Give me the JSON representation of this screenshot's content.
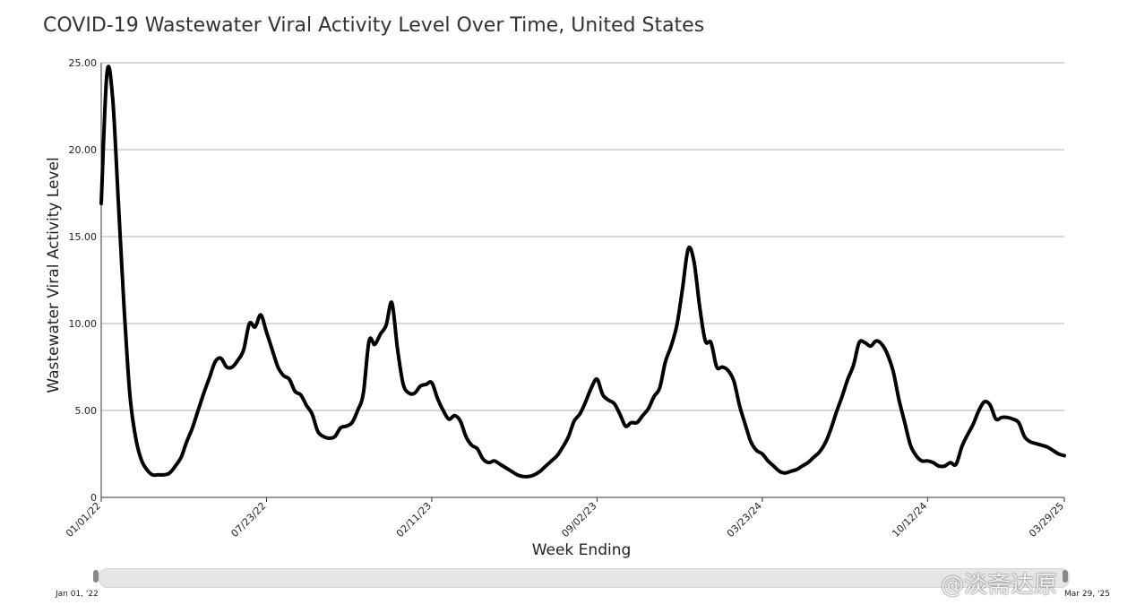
{
  "title": "COVID-19 Wastewater Viral Activity Level Over Time, United States",
  "watermark": "@淡斋达原",
  "range_slider": {
    "start_label": "Jan 01, '22",
    "end_label": "Mar 29, '25"
  },
  "colors": {
    "line": "#000000",
    "grid": "#999999",
    "slider": "#e6e6e6"
  },
  "chart_data": {
    "type": "line",
    "title": "COVID-19 Wastewater Viral Activity Level Over Time, United States",
    "xlabel": "Week Ending",
    "ylabel": "Wastewater Viral Activity Level",
    "ylim": [
      0,
      25
    ],
    "yticks": [
      0,
      5,
      10,
      15,
      20,
      25
    ],
    "ytick_labels": [
      "0",
      "5.00",
      "10.00",
      "15.00",
      "20.00",
      "25.00"
    ],
    "xlim": [
      "01/01/22",
      "03/29/25"
    ],
    "xtick_labels": [
      "01/01/22",
      "07/23/22",
      "02/11/23",
      "09/02/23",
      "03/23/24",
      "10/12/24",
      "03/29/25"
    ],
    "grid": "horizontal",
    "legend": "none",
    "series": [
      {
        "points": [
          [
            "01/01/22",
            16.9
          ],
          [
            "01/08/22",
            24.4
          ],
          [
            "01/15/22",
            23.0
          ],
          [
            "01/22/22",
            17.0
          ],
          [
            "01/29/22",
            11.0
          ],
          [
            "02/05/22",
            6.0
          ],
          [
            "02/12/22",
            3.5
          ],
          [
            "02/19/22",
            2.2
          ],
          [
            "02/26/22",
            1.6
          ],
          [
            "03/05/22",
            1.3
          ],
          [
            "03/12/22",
            1.3
          ],
          [
            "03/19/22",
            1.3
          ],
          [
            "03/26/22",
            1.4
          ],
          [
            "04/02/22",
            1.8
          ],
          [
            "04/09/22",
            2.3
          ],
          [
            "04/16/22",
            3.2
          ],
          [
            "04/23/22",
            4.0
          ],
          [
            "04/30/22",
            5.0
          ],
          [
            "05/07/22",
            6.0
          ],
          [
            "05/14/22",
            6.9
          ],
          [
            "05/21/22",
            7.8
          ],
          [
            "05/28/22",
            8.0
          ],
          [
            "06/04/22",
            7.5
          ],
          [
            "06/11/22",
            7.5
          ],
          [
            "06/18/22",
            7.9
          ],
          [
            "06/25/22",
            8.5
          ],
          [
            "07/02/22",
            10.0
          ],
          [
            "07/09/22",
            9.8
          ],
          [
            "07/16/22",
            10.5
          ],
          [
            "07/23/22",
            9.5
          ],
          [
            "07/30/22",
            8.5
          ],
          [
            "08/06/22",
            7.5
          ],
          [
            "08/13/22",
            7.0
          ],
          [
            "08/20/22",
            6.8
          ],
          [
            "08/27/22",
            6.1
          ],
          [
            "09/03/22",
            5.9
          ],
          [
            "09/10/22",
            5.3
          ],
          [
            "09/17/22",
            4.8
          ],
          [
            "09/24/22",
            3.8
          ],
          [
            "10/01/22",
            3.5
          ],
          [
            "10/08/22",
            3.4
          ],
          [
            "10/15/22",
            3.5
          ],
          [
            "10/22/22",
            4.0
          ],
          [
            "10/29/22",
            4.1
          ],
          [
            "11/05/22",
            4.3
          ],
          [
            "11/12/22",
            5.0
          ],
          [
            "11/19/22",
            6.0
          ],
          [
            "11/26/22",
            9.0
          ],
          [
            "12/03/22",
            8.8
          ],
          [
            "12/10/22",
            9.4
          ],
          [
            "12/17/22",
            9.9
          ],
          [
            "12/24/22",
            11.2
          ],
          [
            "12/31/22",
            8.5
          ],
          [
            "01/07/23",
            6.5
          ],
          [
            "01/14/23",
            6.0
          ],
          [
            "01/21/23",
            6.0
          ],
          [
            "01/28/23",
            6.4
          ],
          [
            "02/04/23",
            6.5
          ],
          [
            "02/11/23",
            6.6
          ],
          [
            "02/18/23",
            5.7
          ],
          [
            "02/25/23",
            5.0
          ],
          [
            "03/04/23",
            4.5
          ],
          [
            "03/11/23",
            4.7
          ],
          [
            "03/18/23",
            4.4
          ],
          [
            "03/25/23",
            3.5
          ],
          [
            "04/01/23",
            3.0
          ],
          [
            "04/08/23",
            2.8
          ],
          [
            "04/15/23",
            2.2
          ],
          [
            "04/22/23",
            2.0
          ],
          [
            "04/29/23",
            2.1
          ],
          [
            "05/06/23",
            1.9
          ],
          [
            "05/13/23",
            1.7
          ],
          [
            "05/20/23",
            1.5
          ],
          [
            "05/27/23",
            1.3
          ],
          [
            "06/03/23",
            1.2
          ],
          [
            "06/10/23",
            1.2
          ],
          [
            "06/17/23",
            1.3
          ],
          [
            "06/24/23",
            1.5
          ],
          [
            "07/01/23",
            1.8
          ],
          [
            "07/08/23",
            2.1
          ],
          [
            "07/15/23",
            2.4
          ],
          [
            "07/22/23",
            2.9
          ],
          [
            "07/29/23",
            3.5
          ],
          [
            "08/05/23",
            4.4
          ],
          [
            "08/12/23",
            4.8
          ],
          [
            "08/19/23",
            5.5
          ],
          [
            "08/26/23",
            6.3
          ],
          [
            "09/02/23",
            6.8
          ],
          [
            "09/09/23",
            5.9
          ],
          [
            "09/16/23",
            5.6
          ],
          [
            "09/23/23",
            5.4
          ],
          [
            "09/30/23",
            4.8
          ],
          [
            "10/07/23",
            4.1
          ],
          [
            "10/14/23",
            4.3
          ],
          [
            "10/21/23",
            4.3
          ],
          [
            "10/28/23",
            4.7
          ],
          [
            "11/04/23",
            5.1
          ],
          [
            "11/11/23",
            5.8
          ],
          [
            "11/18/23",
            6.3
          ],
          [
            "11/25/23",
            7.8
          ],
          [
            "12/02/23",
            8.7
          ],
          [
            "12/09/23",
            9.9
          ],
          [
            "12/16/23",
            12.0
          ],
          [
            "12/23/23",
            14.3
          ],
          [
            "12/30/23",
            13.6
          ],
          [
            "01/06/24",
            11.0
          ],
          [
            "01/13/24",
            9.0
          ],
          [
            "01/20/24",
            8.9
          ],
          [
            "01/27/24",
            7.5
          ],
          [
            "02/03/24",
            7.5
          ],
          [
            "02/10/24",
            7.3
          ],
          [
            "02/17/24",
            6.7
          ],
          [
            "02/24/24",
            5.3
          ],
          [
            "03/02/24",
            4.2
          ],
          [
            "03/09/24",
            3.2
          ],
          [
            "03/16/24",
            2.7
          ],
          [
            "03/23/24",
            2.5
          ],
          [
            "03/30/24",
            2.1
          ],
          [
            "04/06/24",
            1.8
          ],
          [
            "04/13/24",
            1.5
          ],
          [
            "04/20/24",
            1.4
          ],
          [
            "04/27/24",
            1.5
          ],
          [
            "05/04/24",
            1.6
          ],
          [
            "05/11/24",
            1.8
          ],
          [
            "05/18/24",
            2.0
          ],
          [
            "05/25/24",
            2.3
          ],
          [
            "06/01/24",
            2.6
          ],
          [
            "06/08/24",
            3.1
          ],
          [
            "06/15/24",
            3.9
          ],
          [
            "06/22/24",
            4.9
          ],
          [
            "06/29/24",
            5.8
          ],
          [
            "07/06/24",
            6.8
          ],
          [
            "07/13/24",
            7.6
          ],
          [
            "07/20/24",
            8.9
          ],
          [
            "07/27/24",
            8.9
          ],
          [
            "08/03/24",
            8.7
          ],
          [
            "08/10/24",
            9.0
          ],
          [
            "08/17/24",
            8.8
          ],
          [
            "08/24/24",
            8.2
          ],
          [
            "08/31/24",
            7.2
          ],
          [
            "09/07/24",
            5.6
          ],
          [
            "09/14/24",
            4.3
          ],
          [
            "09/21/24",
            3.0
          ],
          [
            "09/28/24",
            2.4
          ],
          [
            "10/05/24",
            2.1
          ],
          [
            "10/12/24",
            2.1
          ],
          [
            "10/19/24",
            2.0
          ],
          [
            "10/26/24",
            1.8
          ],
          [
            "11/02/24",
            1.8
          ],
          [
            "11/09/24",
            2.0
          ],
          [
            "11/16/24",
            1.9
          ],
          [
            "11/23/24",
            2.9
          ],
          [
            "11/30/24",
            3.6
          ],
          [
            "12/07/24",
            4.2
          ],
          [
            "12/14/24",
            5.0
          ],
          [
            "12/21/24",
            5.5
          ],
          [
            "12/28/24",
            5.3
          ],
          [
            "01/04/25",
            4.5
          ],
          [
            "01/11/25",
            4.6
          ],
          [
            "01/18/25",
            4.6
          ],
          [
            "01/25/25",
            4.5
          ],
          [
            "02/01/25",
            4.3
          ],
          [
            "02/08/25",
            3.5
          ],
          [
            "02/15/25",
            3.2
          ],
          [
            "02/22/25",
            3.1
          ],
          [
            "03/01/25",
            3.0
          ],
          [
            "03/08/25",
            2.9
          ],
          [
            "03/15/25",
            2.7
          ],
          [
            "03/22/25",
            2.5
          ],
          [
            "03/29/25",
            2.4
          ]
        ]
      }
    ]
  }
}
